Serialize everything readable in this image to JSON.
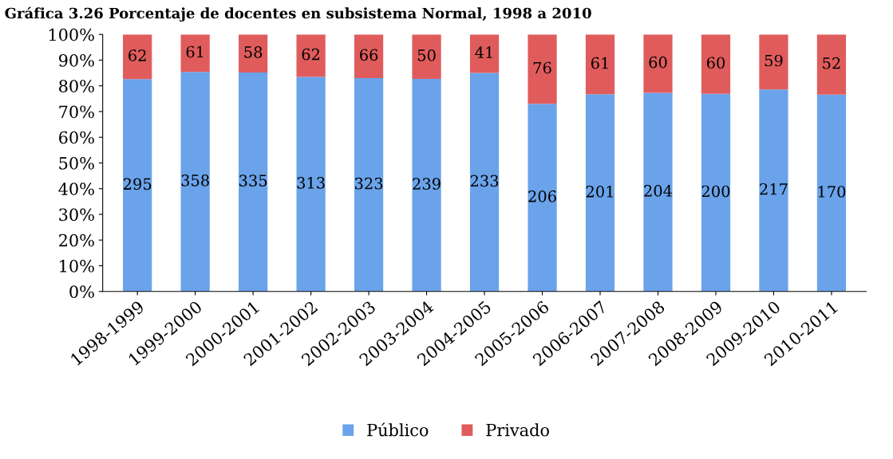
{
  "chart_data": {
    "type": "bar",
    "stacked": true,
    "title": "Gráfica 3.26 Porcentaje de docentes en subsistema Normal, 1998 a 2010",
    "categories": [
      "1998-1999",
      "1999-2000",
      "2000-2001",
      "2001-2002",
      "2002-2003",
      "2003-2004",
      "2004-2005",
      "2005-2006",
      "2006-2007",
      "2007-2008",
      "2008-2009",
      "2009-2010",
      "2010-2011"
    ],
    "series": [
      {
        "name": "Público",
        "color": "#6aa3ea",
        "values": [
          82.6,
          85.4,
          85.2,
          83.5,
          83.0,
          82.7,
          85.0,
          73.0,
          76.7,
          77.3,
          76.9,
          78.6,
          76.6
        ]
      },
      {
        "name": "Privado",
        "color": "#e05c5c",
        "values": [
          17.4,
          14.6,
          14.8,
          16.5,
          17.0,
          17.3,
          15.0,
          27.0,
          23.3,
          22.7,
          23.1,
          21.4,
          23.4
        ]
      }
    ],
    "annotations": [
      "295",
      "358",
      "335",
      "313",
      "323",
      "239",
      "233",
      "206",
      "201",
      "204",
      "200",
      "217",
      "170",
      "62",
      "61",
      "58",
      "62",
      "66",
      "50",
      "41",
      "76",
      "61",
      "60",
      "60",
      "59",
      "52"
    ],
    "ylim": [
      0,
      100
    ],
    "yticks": [
      {
        "value": 0,
        "label": "0%"
      },
      {
        "value": 10,
        "label": "10%"
      },
      {
        "value": 20,
        "label": "20%"
      },
      {
        "value": 30,
        "label": "30%"
      },
      {
        "value": 40,
        "label": "40%"
      },
      {
        "value": 50,
        "label": "50%"
      },
      {
        "value": 60,
        "label": "60%"
      },
      {
        "value": 70,
        "label": "70%"
      },
      {
        "value": 80,
        "label": "80%"
      },
      {
        "value": 90,
        "label": "90%"
      },
      {
        "value": 100,
        "label": "100%"
      }
    ],
    "grid": false,
    "legend": "bottom"
  }
}
